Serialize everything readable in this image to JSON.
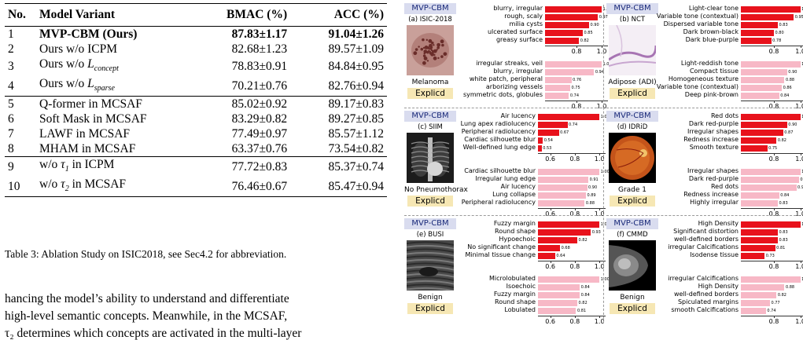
{
  "table": {
    "headers": [
      "No.",
      "Model Variant",
      "BMAC (%)",
      "ACC (%)"
    ],
    "groups": [
      [
        {
          "no": "1",
          "variant": "MVP-CBM (Ours)",
          "bmac": "87.83±1.17",
          "acc": "91.04±1.26",
          "bold": true
        },
        {
          "no": "2",
          "variant": "Ours w/o ICPM",
          "bmac": "82.68±1.23",
          "acc": "89.57±1.09"
        },
        {
          "no": "3",
          "variant_prefix": "Ours w/o ",
          "script": "L",
          "sub": "concept",
          "bmac": "78.83±0.91",
          "acc": "84.84±0.95"
        },
        {
          "no": "4",
          "variant_prefix": "Ours w/o ",
          "script": "L",
          "sub": "sparse",
          "bmac": "70.21±0.76",
          "acc": "82.76±0.94"
        }
      ],
      [
        {
          "no": "5",
          "variant": "Q-former in MCSAF",
          "bmac": "85.02±0.92",
          "acc": "89.17±0.83"
        },
        {
          "no": "6",
          "variant": "Soft Mask in MCSAF",
          "bmac": "83.29±0.82",
          "acc": "89.27±0.85"
        },
        {
          "no": "7",
          "variant": "LAWF in MCSAF",
          "bmac": "77.49±0.97",
          "acc": "85.57±1.12"
        },
        {
          "no": "8",
          "variant": "MHAM in MCSAF",
          "bmac": "63.37±0.76",
          "acc": "73.54±0.82"
        }
      ],
      [
        {
          "no": "9",
          "variant_prefix": "w/o ",
          "script": "τ",
          "sub": "1",
          "variant_suffix": " in ICPM",
          "bmac": "77.72±0.83",
          "acc": "85.37±0.74"
        },
        {
          "no": "10",
          "variant_prefix": "w/o ",
          "script": "τ",
          "sub": "2",
          "variant_suffix": " in MCSAF",
          "bmac": "76.46±0.67",
          "acc": "85.47±0.94"
        }
      ]
    ]
  },
  "caption": "Table 3: Ablation Study on ISIC2018, see Sec4.2 for abbreviation.",
  "body_lines": [
    "hancing the model’s ability to understand and differentiate",
    "high-level semantic concepts.  Meanwhile, in the MCSAF,",
    "τ₂ determines which concepts are activated in the multi-layer"
  ],
  "colors": {
    "model_bar": "#e8121c",
    "explicd_bar": "#f7b8c6",
    "mvp_badge": "#d9dcef",
    "explicd_badge": "#f6e7b4"
  },
  "datasets": [
    {
      "key": "isic",
      "model_label": "MVP-CBM",
      "dataset": "(a) ISIC-2018",
      "class": "Melanoma",
      "baseline_label": "Explicd",
      "image_icon": "dermoscopy-image",
      "top": {
        "ticks": [
          "0.8",
          "1.0"
        ],
        "bars": [
          {
            "label": "blurry, irregular",
            "value": "1.00"
          },
          {
            "label": "rough, scaly",
            "value": "0.97"
          },
          {
            "label": "milia cysts",
            "value": "0.90"
          },
          {
            "label": "ulcerated surface",
            "value": "0.85"
          },
          {
            "label": "greasy surface",
            "value": "0.82"
          }
        ]
      },
      "bottom": {
        "ticks": [
          "0.8",
          "1.0"
        ],
        "bars": [
          {
            "label": "irregular streaks, veil",
            "value": "1.00"
          },
          {
            "label": "blurry, irregular",
            "value": "0.94"
          },
          {
            "label": "white patch, peripheral",
            "value": "0.76"
          },
          {
            "label": "arborizing vessels",
            "value": "0.75"
          },
          {
            "label": "symmetric dots, globules",
            "value": "0.74"
          }
        ]
      }
    },
    {
      "key": "nct",
      "model_label": "MVP-CBM",
      "dataset": "(b) NCT",
      "class": "Adipose (ADI)",
      "baseline_label": "Explicd",
      "image_icon": "histology-image",
      "top": {
        "ticks": [
          "0.8",
          "1.0"
        ],
        "bars": [
          {
            "label": "Light-clear tone",
            "value": "1.00"
          },
          {
            "label": "Variable tone (contextual)",
            "value": "0.95"
          },
          {
            "label": "Dispersed variable tone",
            "value": "0.83"
          },
          {
            "label": "Dark brown-black",
            "value": "0.80"
          },
          {
            "label": "Dark blue-purple",
            "value": "0.78"
          }
        ]
      },
      "bottom": {
        "ticks": [
          "0.8",
          "1.0"
        ],
        "bars": [
          {
            "label": "Light-reddish tone",
            "value": "1.00"
          },
          {
            "label": "Compact tissue",
            "value": "0.90"
          },
          {
            "label": "Homogeneous texture",
            "value": "0.88"
          },
          {
            "label": "Variable tone (contextual)",
            "value": "0.86"
          },
          {
            "label": "Deep pink-brown",
            "value": "0.84"
          }
        ]
      }
    },
    {
      "key": "siim",
      "model_label": "MVP-CBM",
      "dataset": "(c) SIIM",
      "class": "No Pneumothorax",
      "baseline_label": "Explicd",
      "image_icon": "chest-xray-image",
      "top": {
        "ticks": [
          "0.6",
          "0.8",
          "1.0"
        ],
        "bars": [
          {
            "label": "Air lucency",
            "value": "1.00"
          },
          {
            "label": "Lung apex radiolucency",
            "value": "0.74"
          },
          {
            "label": "Peripheral radiolucency",
            "value": "0.67"
          },
          {
            "label": "Cardiac silhouette blur",
            "value": "0.54"
          },
          {
            "label": "Well-defined lung edge",
            "value": "0.53"
          }
        ]
      },
      "bottom": {
        "ticks": [
          "0.6",
          "0.8",
          "1.0"
        ],
        "bars": [
          {
            "label": "Cardiac silhouette blur",
            "value": "1.00"
          },
          {
            "label": "Irregular lung edge",
            "value": "0.91"
          },
          {
            "label": "Air lucency",
            "value": "0.90"
          },
          {
            "label": "Lung collapse",
            "value": "0.89"
          },
          {
            "label": "Peripheral radiolucency",
            "value": "0.88"
          }
        ]
      }
    },
    {
      "key": "idrid",
      "model_label": "MVP-CBM",
      "dataset": "(d) IDRiD",
      "class": "Grade 1",
      "baseline_label": "Explicd",
      "image_icon": "fundus-image",
      "top": {
        "ticks": [
          "0.8",
          "1.0"
        ],
        "bars": [
          {
            "label": "Red dots",
            "value": "1.00"
          },
          {
            "label": "Dark red-purple",
            "value": "0.90"
          },
          {
            "label": "Irregular shapes",
            "value": "0.87"
          },
          {
            "label": "Redness increase",
            "value": "0.82"
          },
          {
            "label": "Smooth texture",
            "value": "0.75"
          }
        ]
      },
      "bottom": {
        "ticks": [
          "0.8",
          "1.0"
        ],
        "bars": [
          {
            "label": "Irregular shapes",
            "value": "1.00"
          },
          {
            "label": "Dark red-purple",
            "value": "0.99"
          },
          {
            "label": "Red dots",
            "value": "0.97"
          },
          {
            "label": "Redness increase",
            "value": "0.84"
          },
          {
            "label": "Highly irregular",
            "value": "0.83"
          }
        ]
      }
    },
    {
      "key": "busi",
      "model_label": "MVP-CBM",
      "dataset": "(e) BUSI",
      "class": "Benign",
      "baseline_label": "Explicd",
      "image_icon": "ultrasound-image",
      "top": {
        "ticks": [
          "0.6",
          "0.8",
          "1.0"
        ],
        "bars": [
          {
            "label": "Fuzzy margin",
            "value": "1.00"
          },
          {
            "label": "Round shape",
            "value": "0.93"
          },
          {
            "label": "Hypoechoic",
            "value": "0.82"
          },
          {
            "label": "No significant change",
            "value": "0.68"
          },
          {
            "label": "Minimal tissue change",
            "value": "0.64"
          }
        ]
      },
      "bottom": {
        "ticks": [
          "0.6",
          "0.8",
          "1.0"
        ],
        "bars": [
          {
            "label": "Microlobulated",
            "value": "1.00"
          },
          {
            "label": "Isoechoic",
            "value": "0.84"
          },
          {
            "label": "Fuzzy margin",
            "value": "0.84"
          },
          {
            "label": "Round shape",
            "value": "0.82"
          },
          {
            "label": "Lobulated",
            "value": "0.81"
          }
        ]
      }
    },
    {
      "key": "cmmd",
      "model_label": "MVP-CBM",
      "dataset": "(f) CMMD",
      "class": "Benign",
      "baseline_label": "Explicd",
      "image_icon": "mammogram-image",
      "top": {
        "ticks": [
          "0.8",
          "1.0"
        ],
        "bars": [
          {
            "label": "High Density",
            "value": "1.00"
          },
          {
            "label": "Significant distortion",
            "value": "0.83"
          },
          {
            "label": "well-defined borders",
            "value": "0.83"
          },
          {
            "label": "irregular Calcifications",
            "value": "0.81"
          },
          {
            "label": "Isodense tissue",
            "value": "0.73"
          }
        ]
      },
      "bottom": {
        "ticks": [
          "0.8",
          "1.0"
        ],
        "bars": [
          {
            "label": "irregular Calcifications",
            "value": "1.00"
          },
          {
            "label": "High Density",
            "value": "0.88"
          },
          {
            "label": "well-defined borders",
            "value": "0.82"
          },
          {
            "label": "Spiculated margins",
            "value": "0.77"
          },
          {
            "label": "smooth Calcifications",
            "value": "0.74"
          }
        ]
      }
    }
  ]
}
